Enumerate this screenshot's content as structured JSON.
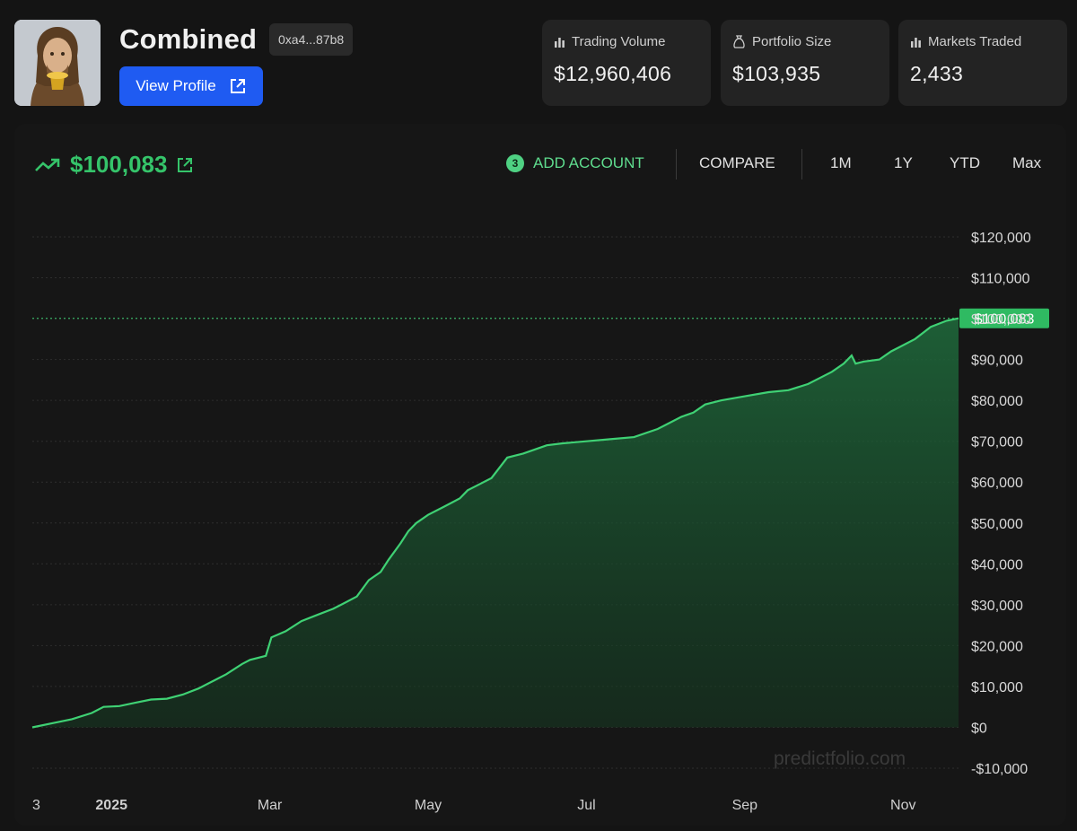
{
  "profile": {
    "name": "Combined",
    "address": "0xa4...87b8",
    "view_profile_label": "View Profile"
  },
  "stats": [
    {
      "label": "Trading Volume",
      "value": "$12,960,406",
      "icon": "bar-chart-icon"
    },
    {
      "label": "Portfolio Size",
      "value": "$103,935",
      "icon": "money-bag-icon"
    },
    {
      "label": "Markets Traded",
      "value": "2,433",
      "icon": "bar-chart-icon"
    }
  ],
  "portfolio": {
    "value": "$100,083",
    "trend_icon": "trend-up-icon",
    "external_icon": "external-link-icon"
  },
  "toolbar": {
    "add_account_count": "3",
    "add_account_label": "ADD ACCOUNT",
    "compare_label": "COMPARE",
    "ranges": [
      "1M",
      "1Y",
      "YTD",
      "Max"
    ]
  },
  "watermark": "predictfolio.com",
  "colors": {
    "accent_green": "#35c46a",
    "button_blue": "#1f5bf2",
    "background": "#141414"
  },
  "chart_data": {
    "type": "area",
    "ylim": [
      -10000,
      120000
    ],
    "yticks": [
      120000,
      110000,
      100000,
      90000,
      80000,
      70000,
      60000,
      50000,
      40000,
      30000,
      20000,
      10000,
      0,
      -10000
    ],
    "ytick_labels": [
      "$120,000",
      "$110,000",
      "$100,000",
      "$90,000",
      "$80,000",
      "$70,000",
      "$60,000",
      "$50,000",
      "$40,000",
      "$30,000",
      "$20,000",
      "$10,000",
      "$0",
      "-$10,000"
    ],
    "xticks": [
      {
        "month": 0,
        "label": "3"
      },
      {
        "month": 1,
        "label": "2025"
      },
      {
        "month": 3,
        "label": "Mar"
      },
      {
        "month": 5,
        "label": "May"
      },
      {
        "month": 7,
        "label": "Jul"
      },
      {
        "month": 9,
        "label": "Sep"
      },
      {
        "month": 11,
        "label": "Nov"
      }
    ],
    "current_value": 100083,
    "current_label": "$100,083",
    "grid": "horizontal-dotted",
    "series": [
      {
        "x": [
          0.0,
          0.25,
          0.5,
          0.75,
          0.9,
          1.1,
          1.3,
          1.5,
          1.7,
          1.9,
          2.1,
          2.3,
          2.45,
          2.65,
          2.75,
          2.95,
          3.02,
          3.2,
          3.4,
          3.6,
          3.8,
          3.95,
          4.1,
          4.25,
          4.4,
          4.5,
          4.65,
          4.75,
          4.85,
          5.0,
          5.2,
          5.4,
          5.5,
          5.6,
          5.8,
          6.0,
          6.2,
          6.35,
          6.5,
          6.7,
          7.0,
          7.3,
          7.6,
          7.9,
          8.0,
          8.2,
          8.35,
          8.5,
          8.7,
          9.0,
          9.3,
          9.55,
          9.8,
          10.0,
          10.1,
          10.25,
          10.35,
          10.4,
          10.5,
          10.7,
          10.85,
          10.95,
          11.15,
          11.35,
          11.55,
          11.7
        ],
        "values": [
          0,
          1000,
          2000,
          3500,
          5000,
          5200,
          6000,
          6800,
          7000,
          8000,
          9500,
          11500,
          13000,
          15500,
          16500,
          17500,
          22000,
          23500,
          26000,
          27500,
          29000,
          30500,
          32000,
          36000,
          38000,
          41000,
          45000,
          48000,
          50000,
          52000,
          54000,
          56000,
          58000,
          59000,
          61000,
          66000,
          67000,
          68000,
          69000,
          69500,
          70000,
          70500,
          71000,
          73000,
          74000,
          76000,
          77000,
          79000,
          80000,
          81000,
          82000,
          82500,
          84000,
          86000,
          87000,
          89000,
          91000,
          89000,
          89500,
          90000,
          92000,
          93000,
          95000,
          98000,
          99500,
          100083
        ]
      }
    ]
  }
}
